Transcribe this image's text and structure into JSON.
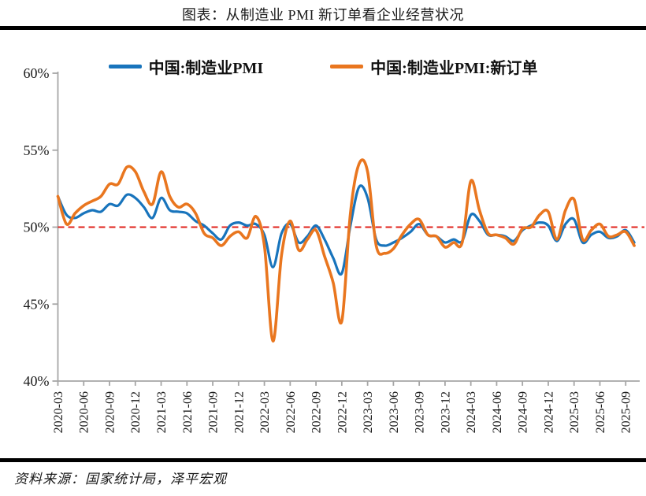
{
  "page": {
    "title": "图表：从制造业 PMI 新订单看企业经营状况",
    "source_note": "资料来源：国家统计局，泽平宏观"
  },
  "chart_data": {
    "type": "line",
    "title": "图表：从制造业 PMI 新订单看企业经营状况",
    "xlabel": "",
    "ylabel": "",
    "ylim": [
      40,
      60
    ],
    "yticks": [
      40,
      45,
      50,
      55,
      60
    ],
    "ytick_suffix": "%",
    "grid": false,
    "legend_position": "top",
    "axis_color": "#a6a6a6",
    "text_color": "#1a1a1a",
    "reference_line": {
      "value": 50,
      "color": "#e0201a",
      "style": "dashed"
    },
    "x": [
      "2020-03",
      "2020-04",
      "2020-05",
      "2020-06",
      "2020-07",
      "2020-08",
      "2020-09",
      "2020-10",
      "2020-11",
      "2020-12",
      "2021-01",
      "2021-02",
      "2021-03",
      "2021-04",
      "2021-05",
      "2021-06",
      "2021-07",
      "2021-08",
      "2021-09",
      "2021-10",
      "2021-11",
      "2021-12",
      "2022-01",
      "2022-02",
      "2022-03",
      "2022-04",
      "2022-05",
      "2022-06",
      "2022-07",
      "2022-08",
      "2022-09",
      "2022-10",
      "2022-11",
      "2022-12",
      "2023-01",
      "2023-02",
      "2023-03",
      "2023-04",
      "2023-05",
      "2023-06",
      "2023-07",
      "2023-08",
      "2023-09",
      "2023-10",
      "2023-11",
      "2023-12",
      "2024-01",
      "2024-02",
      "2024-03",
      "2024-04",
      "2024-05",
      "2024-06",
      "2024-07",
      "2024-08",
      "2024-09",
      "2024-10",
      "2024-11",
      "2024-12",
      "2025-01",
      "2025-02",
      "2025-03",
      "2025-04",
      "2025-05",
      "2025-06",
      "2025-07",
      "2025-08",
      "2025-09",
      "2025-10"
    ],
    "x_tick_labels": [
      "2020-03",
      "2020-06",
      "2020-09",
      "2020-12",
      "2021-03",
      "2021-06",
      "2021-09",
      "2021-12",
      "2022-03",
      "2022-06",
      "2022-09",
      "2022-12",
      "2023-03",
      "2023-06",
      "2023-09",
      "2023-12",
      "2024-03",
      "2024-06",
      "2024-09",
      "2024-12",
      "2025-03",
      "2025-06",
      "2025-09"
    ],
    "series": [
      {
        "name": "中国:制造业PMI",
        "color": "#1874bc",
        "line_width": 3.2,
        "values": [
          52.0,
          50.8,
          50.6,
          50.9,
          51.1,
          51.0,
          51.5,
          51.4,
          52.1,
          51.9,
          51.3,
          50.6,
          51.9,
          51.1,
          51.0,
          50.9,
          50.4,
          50.1,
          49.6,
          49.2,
          50.1,
          50.3,
          50.1,
          50.2,
          49.5,
          47.4,
          49.6,
          50.2,
          49.0,
          49.4,
          50.1,
          49.2,
          48.0,
          47.0,
          50.1,
          52.6,
          51.9,
          49.2,
          48.8,
          49.0,
          49.3,
          49.7,
          50.2,
          49.5,
          49.4,
          49.0,
          49.2,
          49.1,
          50.8,
          50.4,
          49.5,
          49.5,
          49.4,
          49.1,
          49.8,
          50.1,
          50.3,
          50.1,
          49.1,
          50.2,
          50.5,
          49.0,
          49.5,
          49.7,
          49.3,
          49.4,
          49.8,
          49.0
        ]
      },
      {
        "name": "中国:制造业PMI:新订单",
        "color": "#e9761f",
        "line_width": 3.6,
        "values": [
          52.0,
          50.2,
          50.9,
          51.4,
          51.7,
          52.0,
          52.8,
          52.8,
          53.9,
          53.6,
          52.3,
          51.5,
          53.6,
          52.0,
          51.3,
          51.5,
          50.9,
          49.6,
          49.3,
          48.8,
          49.4,
          49.7,
          49.3,
          50.7,
          48.8,
          42.6,
          48.2,
          50.4,
          48.5,
          49.2,
          49.8,
          48.1,
          46.4,
          43.9,
          50.9,
          54.1,
          53.6,
          48.8,
          48.3,
          48.6,
          49.5,
          50.2,
          50.5,
          49.5,
          49.4,
          48.7,
          49.0,
          49.0,
          53.0,
          51.1,
          49.6,
          49.5,
          49.3,
          48.9,
          49.9,
          50.0,
          50.8,
          51.0,
          49.2,
          51.1,
          51.8,
          49.2,
          49.8,
          50.2,
          49.4,
          49.5,
          49.7,
          48.8
        ]
      }
    ]
  }
}
